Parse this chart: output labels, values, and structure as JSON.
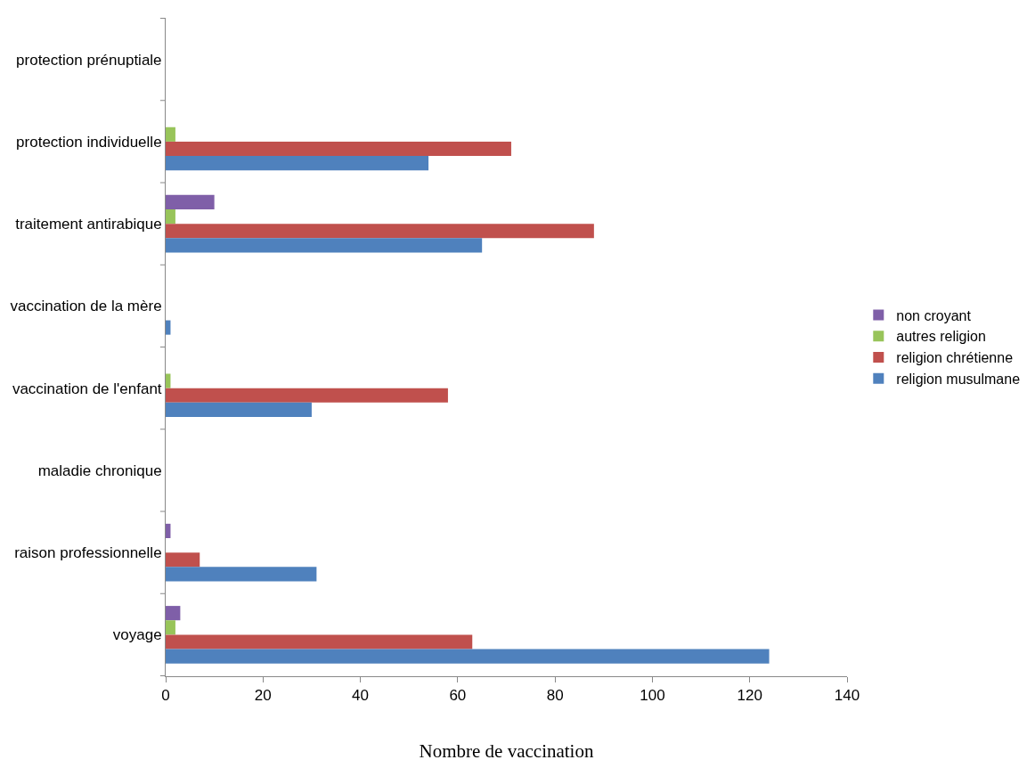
{
  "chart_data": {
    "type": "bar",
    "orientation": "horizontal",
    "xlabel": "Nombre de vaccination",
    "categories": [
      "protection prénuptiale",
      "protection individuelle",
      "traitement antirabique",
      "vaccination de la mère",
      "vaccination de l'enfant",
      "maladie chronique",
      "raison professionnelle",
      "voyage"
    ],
    "series": [
      {
        "name": "non croyant",
        "color": "#7f5fa8",
        "values": [
          0,
          0,
          10,
          0,
          0,
          0,
          1,
          3
        ]
      },
      {
        "name": "autres religion",
        "color": "#98c45a",
        "values": [
          0,
          2,
          2,
          0,
          1,
          0,
          0,
          2
        ]
      },
      {
        "name": "religion chrétienne",
        "color": "#c0504d",
        "values": [
          0,
          71,
          88,
          0,
          58,
          0,
          7,
          63
        ]
      },
      {
        "name": "religion musulmane",
        "color": "#4f81bd",
        "values": [
          0,
          54,
          65,
          1,
          30,
          0,
          31,
          124
        ]
      }
    ],
    "xlim": [
      0,
      140
    ],
    "xticks": [
      0,
      20,
      40,
      60,
      80,
      100,
      120,
      140
    ],
    "legend": "right"
  }
}
